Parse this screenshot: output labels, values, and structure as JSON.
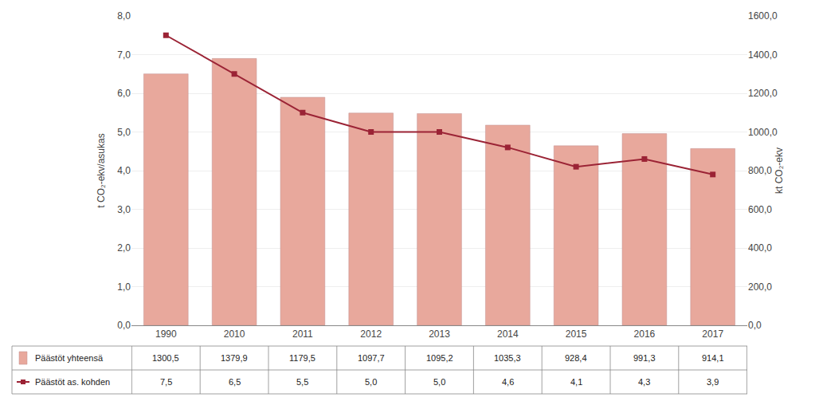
{
  "chart_data": {
    "type": "bar",
    "categories": [
      "1990",
      "2010",
      "2011",
      "2012",
      "2013",
      "2014",
      "2015",
      "2016",
      "2017"
    ],
    "series": [
      {
        "name": "Päästöt yhteensä",
        "type": "bar",
        "axis": "y2",
        "color": "#e8a89c",
        "values": [
          1300.5,
          1379.9,
          1179.5,
          1097.7,
          1095.2,
          1035.3,
          928.4,
          991.3,
          914.1
        ],
        "value_labels": [
          "1300,5",
          "1379,9",
          "1179,5",
          "1097,7",
          "1095,2",
          "1035,3",
          "928,4",
          "991,3",
          "914,1"
        ]
      },
      {
        "name": "Päästöt as. kohden",
        "type": "line",
        "axis": "y",
        "color": "#9b2335",
        "marker": "square",
        "values": [
          7.5,
          6.5,
          5.5,
          5.0,
          5.0,
          4.6,
          4.1,
          4.3,
          3.9
        ],
        "value_labels": [
          "7,5",
          "6,5",
          "5,5",
          "5,0",
          "5,0",
          "4,6",
          "4,1",
          "4,3",
          "3,9"
        ]
      }
    ],
    "ylabel": "t CO₂-ekv/asukas",
    "y2label": "kt CO₂-ekv",
    "ylim": [
      0.0,
      8.0
    ],
    "yticks": [
      {
        "value": 0,
        "label": "0,0"
      },
      {
        "value": 1,
        "label": "1,0"
      },
      {
        "value": 2,
        "label": "2,0"
      },
      {
        "value": 3,
        "label": "3,0"
      },
      {
        "value": 4,
        "label": "4,0"
      },
      {
        "value": 5,
        "label": "5,0"
      },
      {
        "value": 6,
        "label": "6,0"
      },
      {
        "value": 7,
        "label": "7,0"
      },
      {
        "value": 8,
        "label": "8,0"
      }
    ],
    "y2lim": [
      0.0,
      1600.0
    ],
    "y2ticks": [
      {
        "value": 0,
        "label": "0,0"
      },
      {
        "value": 200,
        "label": "200,0"
      },
      {
        "value": 400,
        "label": "400,0"
      },
      {
        "value": 600,
        "label": "600,0"
      },
      {
        "value": 800,
        "label": "800,0"
      },
      {
        "value": 1000,
        "label": "1000,0"
      },
      {
        "value": 1200,
        "label": "1200,0"
      },
      {
        "value": 1400,
        "label": "1400,0"
      },
      {
        "value": 1600,
        "label": "1600,0"
      }
    ],
    "grid": true
  }
}
